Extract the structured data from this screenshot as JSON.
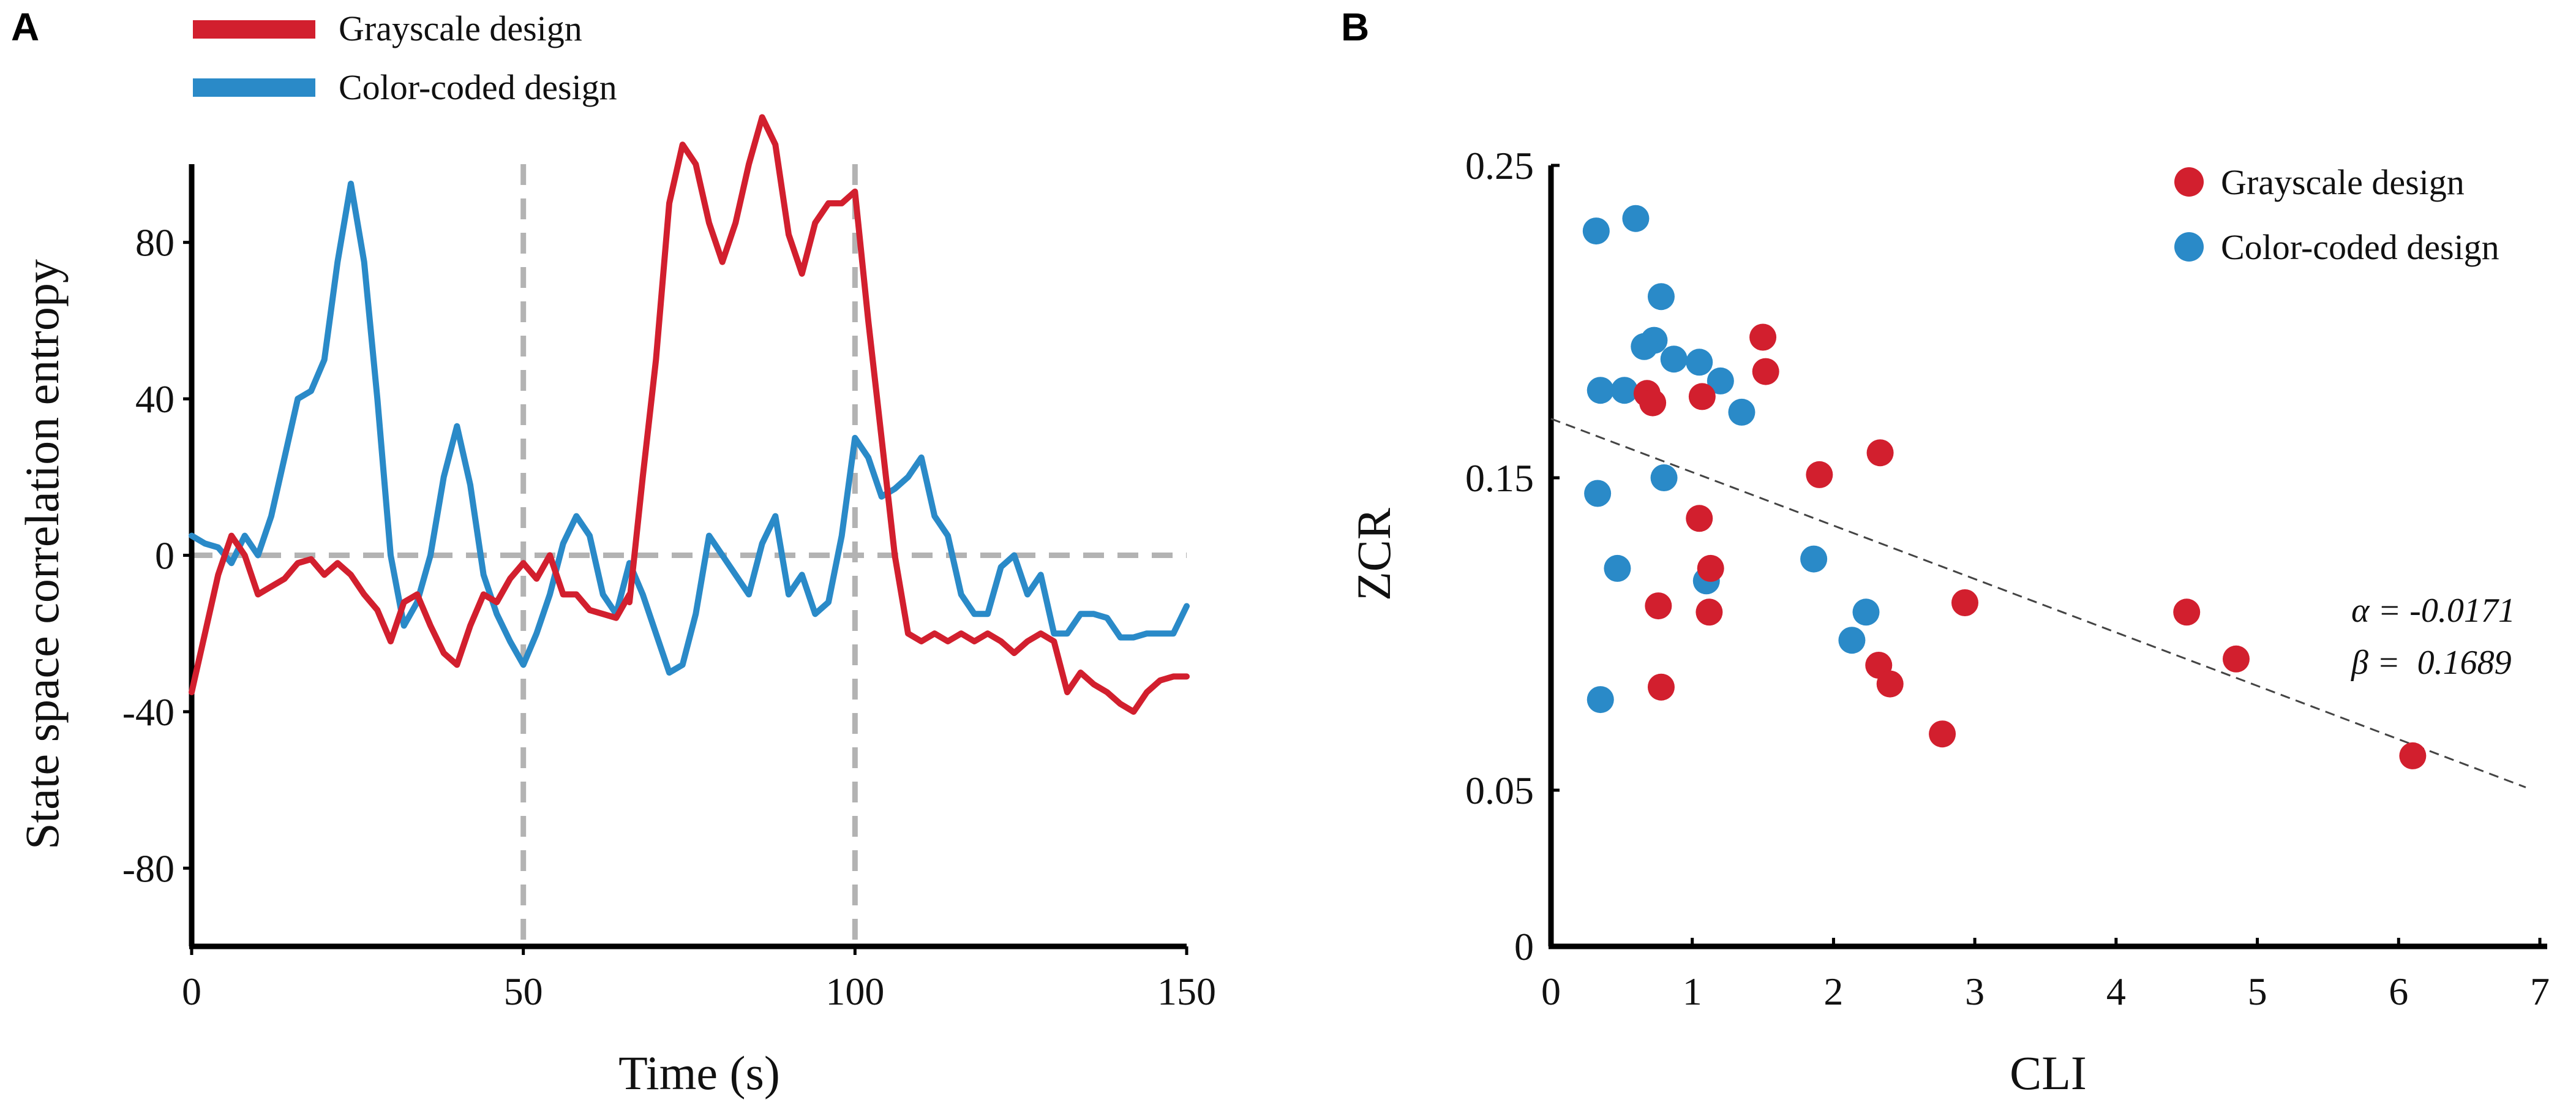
{
  "panels": {
    "a_label": "A",
    "b_label": "B"
  },
  "colors": {
    "red": "#d21f2e",
    "blue": "#2a8ac8",
    "ref_line": "#b3b3b3",
    "fit_line": "#444444"
  },
  "chart_data": [
    {
      "type": "line",
      "panel": "A",
      "xlabel": "Time (s)",
      "ylabel": "State space correlation entropy",
      "xlim": [
        0,
        150
      ],
      "ylim": [
        -100,
        100
      ],
      "xticks": [
        0,
        50,
        100,
        150
      ],
      "yticks": [
        80,
        40,
        0,
        -40,
        -80
      ],
      "legend": {
        "position": "top-left-outside"
      },
      "reference_lines": {
        "horizontal": [
          0
        ],
        "vertical": [
          50,
          100
        ]
      },
      "series": [
        {
          "name": "Grayscale design",
          "color": "#d21f2e",
          "segments": [
            {
              "x": [
                0,
                2,
                4,
                6,
                8,
                10,
                12,
                14,
                16,
                18,
                20,
                22,
                24,
                26,
                28,
                30,
                32,
                34,
                36,
                38,
                40,
                42,
                44,
                46,
                48,
                50,
                52,
                54,
                56,
                58,
                60,
                62,
                64,
                66
              ],
              "y": [
                -35,
                -20,
                -5,
                5,
                0,
                -10,
                -8,
                -6,
                -2,
                -1,
                -5,
                -2,
                -5,
                -10,
                -14,
                -22,
                -12,
                -10,
                -18,
                -25,
                -28,
                -18,
                -10,
                -12,
                -6,
                -2,
                -6,
                0,
                -10,
                -10,
                -14,
                -15,
                -16,
                -10
              ]
            },
            {
              "x": [
                66,
                68,
                70,
                72,
                74,
                76,
                78,
                80,
                82,
                84,
                86,
                88,
                90,
                92,
                94,
                96,
                98,
                100,
                102,
                104,
                106,
                108,
                110,
                112,
                114,
                116,
                118,
                120,
                122,
                124,
                126,
                128,
                130,
                132,
                134,
                136,
                138,
                140,
                142,
                144,
                146,
                148,
                150
              ],
              "y": [
                -12,
                20,
                50,
                90,
                105,
                100,
                85,
                75,
                85,
                100,
                112,
                105,
                82,
                72,
                85,
                90,
                90,
                93,
                60,
                30,
                0,
                -20,
                -22,
                -20,
                -22,
                -20,
                -22,
                -20,
                -22,
                -25,
                -22,
                -20,
                -22,
                -35,
                -30,
                -33,
                -35,
                -38,
                -40,
                -35,
                -32,
                -31,
                -31
              ]
            }
          ]
        },
        {
          "name": "Color-coded design",
          "color": "#2a8ac8",
          "segments": [
            {
              "x": [
                0,
                2,
                4,
                6,
                8,
                10,
                12,
                14,
                16,
                18,
                20,
                22,
                24,
                26,
                28,
                30,
                32,
                34,
                36,
                38,
                40,
                42,
                44,
                46,
                48,
                50,
                52,
                54,
                56,
                58,
                60,
                62,
                64,
                66,
                68,
                70,
                72,
                74,
                76,
                78,
                80,
                82,
                84,
                86,
                88,
                90,
                92,
                94,
                96,
                98,
                100,
                102,
                104,
                106,
                108,
                110,
                112,
                114,
                116,
                118,
                120,
                122,
                124,
                126,
                128,
                130,
                132,
                134,
                136,
                138,
                140,
                142,
                144,
                146,
                148,
                150
              ],
              "y": [
                5,
                3,
                2,
                -2,
                5,
                0,
                10,
                25,
                40,
                42,
                50,
                75,
                95,
                75,
                40,
                0,
                -18,
                -12,
                0,
                20,
                33,
                18,
                -5,
                -15,
                -22,
                -28,
                -20,
                -10,
                3,
                10,
                5,
                -10,
                -15,
                -2,
                -10,
                -20,
                -30,
                -28,
                -15,
                5,
                0,
                -5,
                -10,
                3,
                10,
                -10,
                -5,
                -15,
                -12,
                5,
                30,
                25,
                15,
                17,
                20,
                25,
                10,
                5,
                -10,
                -15,
                -15,
                -3,
                0,
                -10,
                -5,
                -20,
                -20,
                -15,
                -15,
                -16,
                -21,
                -21,
                -20,
                -20,
                -20,
                -13
              ]
            }
          ]
        }
      ]
    },
    {
      "type": "scatter",
      "panel": "B",
      "xlabel": "CLI",
      "ylabel": "ZCR",
      "xlim": [
        0,
        7
      ],
      "ylim": [
        0,
        0.25
      ],
      "xticks": [
        0,
        1,
        2,
        3,
        4,
        5,
        6,
        7
      ],
      "yticks": [
        0,
        0.05,
        0.15,
        0.25
      ],
      "ytick_labels": [
        "0",
        "0.05",
        "0.15",
        "0.25"
      ],
      "legend": {
        "position": "top-right"
      },
      "annotations": [
        "α = -0.0171",
        "β =  0.1689"
      ],
      "fit_line": {
        "slope": -0.0171,
        "intercept": 0.1689,
        "x_range": [
          0,
          6.9
        ]
      },
      "series": [
        {
          "name": "Grayscale design",
          "color": "#d21f2e",
          "x": [
            0.68,
            0.72,
            1.07,
            1.5,
            1.52,
            1.05,
            1.13,
            1.12,
            0.76,
            0.78,
            1.9,
            2.33,
            2.93,
            2.32,
            2.4,
            2.77,
            4.5,
            4.85,
            6.1
          ],
          "y": [
            0.177,
            0.174,
            0.176,
            0.195,
            0.184,
            0.137,
            0.121,
            0.107,
            0.109,
            0.083,
            0.151,
            0.158,
            0.11,
            0.09,
            0.084,
            0.068,
            0.107,
            0.092,
            0.061
          ]
        },
        {
          "name": "Color-coded design",
          "color": "#2a8ac8",
          "x": [
            0.32,
            0.6,
            0.78,
            0.73,
            0.66,
            0.87,
            1.05,
            1.2,
            0.35,
            0.52,
            1.35,
            0.8,
            0.33,
            0.47,
            1.1,
            1.86,
            2.23,
            2.13,
            0.35
          ],
          "y": [
            0.229,
            0.233,
            0.208,
            0.194,
            0.192,
            0.188,
            0.187,
            0.181,
            0.178,
            0.178,
            0.171,
            0.15,
            0.145,
            0.121,
            0.117,
            0.124,
            0.107,
            0.098,
            0.079
          ]
        }
      ]
    }
  ]
}
